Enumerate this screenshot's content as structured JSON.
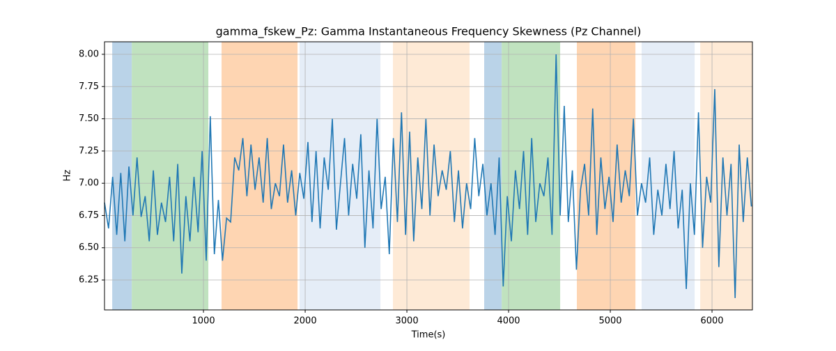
{
  "chart_data": {
    "type": "line",
    "title": "gamma_fskew_Pz: Gamma Instantaneous Frequency Skewness (Pz Channel)",
    "x_label": "Time(s)",
    "y_label": "Hz",
    "xlim": [
      27,
      6397
    ],
    "ylim": [
      6.018,
      8.097
    ],
    "xticks": [
      1000,
      2000,
      3000,
      4000,
      5000,
      6000
    ],
    "yticks": [
      {
        "value": 6.25,
        "label": "6.25"
      },
      {
        "value": 6.5,
        "label": "6.50"
      },
      {
        "value": 6.75,
        "label": "6.75"
      },
      {
        "value": 7.0,
        "label": "7.00"
      },
      {
        "value": 7.25,
        "label": "7.25"
      },
      {
        "value": 7.5,
        "label": "7.50"
      },
      {
        "value": 7.75,
        "label": "7.75"
      },
      {
        "value": 8.0,
        "label": "8.00"
      }
    ],
    "grid": true,
    "spans": [
      {
        "start": 103,
        "end": 295,
        "color": "#bad3e8"
      },
      {
        "start": 295,
        "end": 1048,
        "color": "#c0e2bf"
      },
      {
        "start": 1178,
        "end": 1925,
        "color": "#fed5b2"
      },
      {
        "start": 1945,
        "end": 2740,
        "color": "#e5edf7"
      },
      {
        "start": 2863,
        "end": 3616,
        "color": "#feead6"
      },
      {
        "start": 3760,
        "end": 3932,
        "color": "#bad3e8"
      },
      {
        "start": 3932,
        "end": 4507,
        "color": "#c0e2bf"
      },
      {
        "start": 4671,
        "end": 5247,
        "color": "#fed5b2"
      },
      {
        "start": 5308,
        "end": 5829,
        "color": "#e5edf7"
      },
      {
        "start": 5884,
        "end": 6397,
        "color": "#feead6"
      }
    ],
    "x": [
      27,
      67,
      107,
      147,
      187,
      227,
      267,
      307,
      347,
      387,
      427,
      467,
      507,
      547,
      587,
      627,
      667,
      707,
      747,
      787,
      827,
      867,
      907,
      947,
      987,
      1027,
      1067,
      1107,
      1147,
      1187,
      1227,
      1267,
      1307,
      1347,
      1387,
      1427,
      1467,
      1507,
      1547,
      1587,
      1627,
      1667,
      1707,
      1747,
      1787,
      1827,
      1867,
      1907,
      1947,
      1987,
      2027,
      2067,
      2107,
      2147,
      2187,
      2227,
      2267,
      2307,
      2347,
      2387,
      2427,
      2467,
      2507,
      2547,
      2587,
      2627,
      2667,
      2707,
      2747,
      2787,
      2827,
      2867,
      2907,
      2947,
      2987,
      3027,
      3067,
      3107,
      3147,
      3187,
      3227,
      3267,
      3307,
      3347,
      3387,
      3427,
      3467,
      3507,
      3547,
      3587,
      3627,
      3667,
      3707,
      3747,
      3787,
      3827,
      3867,
      3907,
      3947,
      3987,
      4027,
      4067,
      4107,
      4147,
      4187,
      4227,
      4267,
      4307,
      4347,
      4387,
      4427,
      4467,
      4507,
      4547,
      4587,
      4627,
      4667,
      4707,
      4747,
      4787,
      4827,
      4867,
      4907,
      4947,
      4987,
      5027,
      5067,
      5107,
      5147,
      5187,
      5227,
      5267,
      5307,
      5347,
      5387,
      5427,
      5467,
      5507,
      5547,
      5587,
      5627,
      5667,
      5707,
      5747,
      5787,
      5827,
      5867,
      5907,
      5947,
      5987,
      6027,
      6067,
      6107,
      6147,
      6187,
      6227,
      6267,
      6307,
      6347,
      6387
    ],
    "series": [
      {
        "name": "gamma_fskew_Pz",
        "color": "#1f77b4",
        "values": [
          6.85,
          6.65,
          7.05,
          6.6,
          7.08,
          6.55,
          7.13,
          6.75,
          7.2,
          6.74,
          6.9,
          6.55,
          7.1,
          6.6,
          6.85,
          6.7,
          7.05,
          6.55,
          7.15,
          6.3,
          6.9,
          6.55,
          7.05,
          6.62,
          7.25,
          6.4,
          7.52,
          6.45,
          6.87,
          6.4,
          6.73,
          6.7,
          7.2,
          7.1,
          7.35,
          6.9,
          7.3,
          6.95,
          7.2,
          6.85,
          7.35,
          6.8,
          7.0,
          6.9,
          7.3,
          6.85,
          7.1,
          6.75,
          7.08,
          6.88,
          7.32,
          6.7,
          7.25,
          6.65,
          7.2,
          6.95,
          7.5,
          6.64,
          7.0,
          7.35,
          6.75,
          7.15,
          6.88,
          7.38,
          6.5,
          7.1,
          6.65,
          7.5,
          6.8,
          7.05,
          6.45,
          7.35,
          6.7,
          7.55,
          6.6,
          7.4,
          6.55,
          7.2,
          6.8,
          7.5,
          6.75,
          7.3,
          6.9,
          7.1,
          6.95,
          7.25,
          6.7,
          7.1,
          6.65,
          7.0,
          6.8,
          7.35,
          6.9,
          7.15,
          6.75,
          7.0,
          6.6,
          7.2,
          6.2,
          6.9,
          6.55,
          7.1,
          6.8,
          7.25,
          6.6,
          7.35,
          6.7,
          7.0,
          6.9,
          7.2,
          6.6,
          8.0,
          6.75,
          7.6,
          6.7,
          7.1,
          6.33,
          6.95,
          7.15,
          6.75,
          7.58,
          6.6,
          7.2,
          6.8,
          7.05,
          6.7,
          7.3,
          6.85,
          7.1,
          6.9,
          7.5,
          6.75,
          7.0,
          6.85,
          7.2,
          6.6,
          6.95,
          6.75,
          7.15,
          6.8,
          7.25,
          6.65,
          6.95,
          6.18,
          7.0,
          6.6,
          7.55,
          6.5,
          7.05,
          6.85,
          7.73,
          6.35,
          7.2,
          6.75,
          7.15,
          6.11,
          7.3,
          6.7,
          7.2,
          6.82
        ]
      }
    ]
  }
}
